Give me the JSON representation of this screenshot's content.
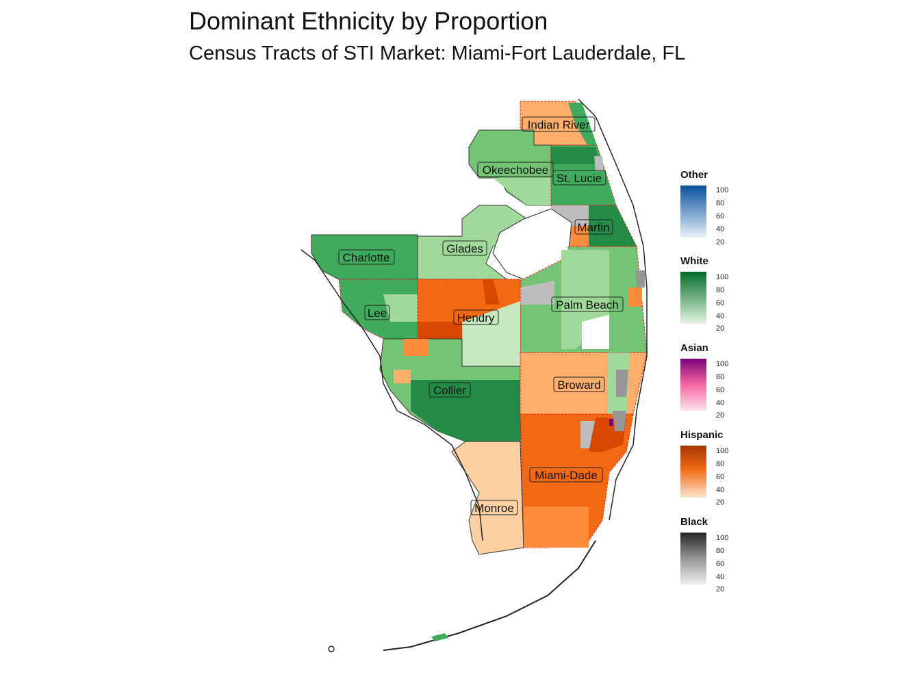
{
  "title": "Dominant Ethnicity by Proportion",
  "subtitle": "Census Tracts of STI Market: Miami-Fort Lauderdale, FL",
  "legends": [
    {
      "name": "Other",
      "ticks": [
        "100",
        "80",
        "60",
        "40",
        "20"
      ],
      "low": "#e8f1fa",
      "high": "#08519c"
    },
    {
      "name": "White",
      "ticks": [
        "100",
        "80",
        "60",
        "40",
        "20"
      ],
      "low": "#e5f5e0",
      "high": "#006d2c"
    },
    {
      "name": "Asian",
      "ticks": [
        "100",
        "80",
        "60",
        "40",
        "20"
      ],
      "low": "#fde0ef",
      "high": "#7a0177"
    },
    {
      "name": "Hispanic",
      "ticks": [
        "100",
        "80",
        "60",
        "40",
        "20"
      ],
      "low": "#fee6ce",
      "high": "#a63603"
    },
    {
      "name": "Black",
      "ticks": [
        "100",
        "80",
        "60",
        "40",
        "20"
      ],
      "low": "#f0f0f0",
      "high": "#252525"
    }
  ],
  "counties": [
    "Indian River",
    "Okeechobee",
    "St. Lucie",
    "Martin",
    "Glades",
    "Charlotte",
    "Palm Beach",
    "Lee",
    "Hendry",
    "Broward",
    "Collier",
    "Miami-Dade",
    "Monroe"
  ],
  "colors": {
    "white_dark": "#238b45",
    "white_mid": "#41ab5d",
    "white_light": "#a1d99b",
    "white_pale": "#c7e9c0",
    "hispanic_dark": "#d94801",
    "hispanic_mid": "#f16913",
    "hispanic_light": "#fdae6b",
    "hispanic_pale": "#fdd0a2",
    "black_mid": "#bdbdbd",
    "asian": "#7a0177",
    "border": "#e31a1c"
  }
}
